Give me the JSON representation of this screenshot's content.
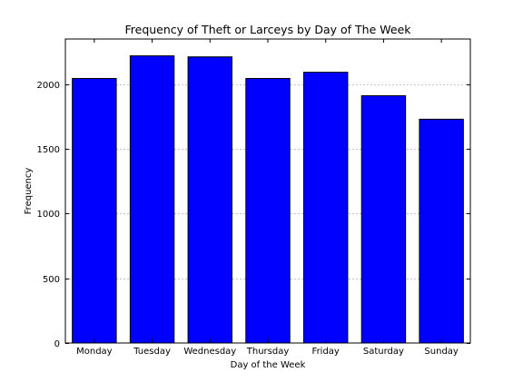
{
  "chart_data": {
    "type": "bar",
    "title": "Frequency of Theft or Larceys by Day of The Week",
    "xlabel": "Day of the Week",
    "ylabel": "Frequency",
    "categories": [
      "Monday",
      "Tuesday",
      "Wednesday",
      "Thursday",
      "Friday",
      "Saturday",
      "Sunday"
    ],
    "values": [
      2045,
      2220,
      2212,
      2045,
      2093,
      1912,
      1730
    ],
    "ylim": [
      0,
      2350
    ],
    "yticks": [
      0,
      500,
      1000,
      1500,
      2000
    ],
    "grid": "y-dashed",
    "legend": "none",
    "colors": {
      "bar_fill": "#0000ff",
      "bar_edge": "#000000",
      "grid": "#b0b0b0",
      "axes": "#000000",
      "background": "#ffffff"
    }
  }
}
